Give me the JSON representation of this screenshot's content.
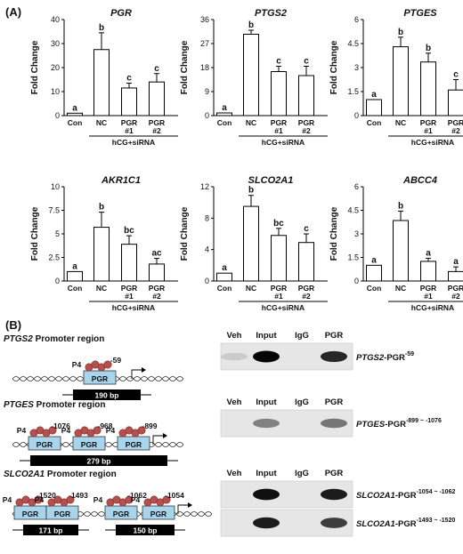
{
  "panel_a": {
    "label": "(A)"
  },
  "panel_b": {
    "label": "(B)"
  },
  "chart_data": [
    {
      "type": "bar",
      "title": "PGR",
      "ylabel": "Fold Change",
      "ylim": [
        0,
        40
      ],
      "yticks": [
        "0",
        "10",
        "20",
        "30",
        "40"
      ],
      "categories": [
        {
          "label": "Con"
        },
        {
          "label": "NC"
        },
        {
          "label": "PGR",
          "sub": "#1"
        },
        {
          "label": "PGR",
          "sub": "#2"
        }
      ],
      "values": [
        1,
        27.5,
        11.5,
        14
      ],
      "errors": [
        0,
        7,
        2,
        3.5
      ],
      "letters": [
        "a",
        "b",
        "c",
        "c"
      ],
      "group_label": "hCG+siRNA"
    },
    {
      "type": "bar",
      "title": "PTGS2",
      "ylabel": "Fold Change",
      "ylim": [
        0,
        36
      ],
      "yticks": [
        "0",
        "9",
        "18",
        "27",
        "36"
      ],
      "categories": [
        {
          "label": "Con"
        },
        {
          "label": "NC"
        },
        {
          "label": "PGR",
          "sub": "#1"
        },
        {
          "label": "PGR",
          "sub": "#2"
        }
      ],
      "values": [
        1,
        30.5,
        16.5,
        15
      ],
      "errors": [
        0,
        1.5,
        2,
        3.5
      ],
      "letters": [
        "a",
        "b",
        "c",
        "c"
      ],
      "group_label": "hCG+siRNA"
    },
    {
      "type": "bar",
      "title": "PTGES",
      "ylabel": "Fold Change",
      "ylim": [
        0,
        6
      ],
      "yticks": [
        "0",
        "1.5",
        "3",
        "4.5",
        "6"
      ],
      "categories": [
        {
          "label": "Con"
        },
        {
          "label": "NC"
        },
        {
          "label": "PGR",
          "sub": "#1"
        },
        {
          "label": "PGR",
          "sub": "#2"
        }
      ],
      "values": [
        1,
        4.3,
        3.35,
        1.6
      ],
      "errors": [
        0,
        0.6,
        0.55,
        0.65
      ],
      "letters": [
        "a",
        "b",
        "b",
        "c"
      ],
      "group_label": "hCG+siRNA"
    },
    {
      "type": "bar",
      "title": "AKR1C1",
      "ylabel": "Fold Change",
      "ylim": [
        0,
        10
      ],
      "yticks": [
        "0",
        "2.5",
        "5",
        "7.5",
        "10"
      ],
      "categories": [
        {
          "label": "Con"
        },
        {
          "label": "NC"
        },
        {
          "label": "PGR",
          "sub": "#1"
        },
        {
          "label": "PGR",
          "sub": "#2"
        }
      ],
      "values": [
        1,
        5.7,
        3.9,
        1.8
      ],
      "errors": [
        0,
        1.6,
        0.9,
        0.6
      ],
      "letters": [
        "a",
        "b",
        "bc",
        "ac"
      ],
      "group_label": "hCG+siRNA"
    },
    {
      "type": "bar",
      "title": "SLCO2A1",
      "ylabel": "Fold Change",
      "ylim": [
        0,
        12
      ],
      "yticks": [
        "0",
        "4",
        "8",
        "12"
      ],
      "categories": [
        {
          "label": "Con"
        },
        {
          "label": "NC"
        },
        {
          "label": "PGR",
          "sub": "#1"
        },
        {
          "label": "PGR",
          "sub": "#2"
        }
      ],
      "values": [
        1,
        9.5,
        5.8,
        4.9
      ],
      "errors": [
        0,
        1.4,
        0.9,
        1.1
      ],
      "letters": [
        "a",
        "b",
        "bc",
        "c"
      ],
      "group_label": "hCG+siRNA"
    },
    {
      "type": "bar",
      "title": "ABCC4",
      "ylabel": "Fold Change",
      "ylim": [
        0,
        6
      ],
      "yticks": [
        "0",
        "1.5",
        "3",
        "4.5",
        "6"
      ],
      "categories": [
        {
          "label": "Con"
        },
        {
          "label": "NC"
        },
        {
          "label": "PGR",
          "sub": "#1"
        },
        {
          "label": "PGR",
          "sub": "#2"
        }
      ],
      "values": [
        1,
        3.85,
        1.25,
        0.6
      ],
      "errors": [
        0,
        0.6,
        0.2,
        0.3
      ],
      "letters": [
        "a",
        "b",
        "a",
        "a"
      ],
      "group_label": "hCG+siRNA"
    }
  ],
  "promoters": [
    {
      "gene": "PTGS2",
      "suffix": " Promoter region",
      "sites": [
        {
          "p4": "P4",
          "pgr": "PGR",
          "pos": "-59"
        }
      ],
      "amplicons": [
        "190 bp"
      ]
    },
    {
      "gene": "PTGES",
      "suffix": " Promoter region",
      "sites": [
        {
          "p4": "P4",
          "pgr": "PGR",
          "pos": "-1076"
        },
        {
          "p4": "P4",
          "pgr": "PGR",
          "pos": "-968"
        },
        {
          "p4": "P4",
          "pgr": "PGR",
          "pos": "-899"
        }
      ],
      "amplicons": [
        "279 bp"
      ]
    },
    {
      "gene": "SLCO2A1",
      "suffix": " Promoter region",
      "sites": [
        {
          "p4": "P4",
          "pgr": "PGR",
          "pos": "-1520"
        },
        {
          "p4": "P4",
          "pgr": "PGR",
          "pos": "-1493"
        },
        {
          "p4": "P4",
          "pgr": "PGR",
          "pos": "-1062"
        },
        {
          "p4": "P4",
          "pgr": "PGR",
          "pos": "-1054"
        }
      ],
      "amplicons": [
        "171 bp",
        "150 bp"
      ]
    }
  ],
  "gels": [
    {
      "columns": [
        "Veh",
        "Input",
        "IgG",
        "PGR"
      ],
      "rows": [
        {
          "gene": "PTGS2",
          "mid": "-PGR",
          "sup": "-59",
          "bands": [
            0.12,
            1.0,
            0.0,
            0.85
          ]
        }
      ]
    },
    {
      "columns": [
        "Veh",
        "Input",
        "IgG",
        "PGR"
      ],
      "rows": [
        {
          "gene": "PTGES",
          "mid": "-PGR",
          "sup": "-899 ~ -1076",
          "bands": [
            0.0,
            0.45,
            0.0,
            0.5
          ]
        }
      ]
    },
    {
      "columns": [
        "Veh",
        "Input",
        "IgG",
        "PGR"
      ],
      "rows": [
        {
          "gene": "SLCO2A1",
          "mid": "-PGR",
          "sup": "-1054 ~ -1062",
          "bands": [
            0.0,
            0.95,
            0.0,
            0.9
          ]
        },
        {
          "gene": "SLCO2A1",
          "mid": "-PGR",
          "sup": "-1493 ~ -1520",
          "bands": [
            0.0,
            0.9,
            0.0,
            0.75
          ]
        }
      ]
    }
  ]
}
